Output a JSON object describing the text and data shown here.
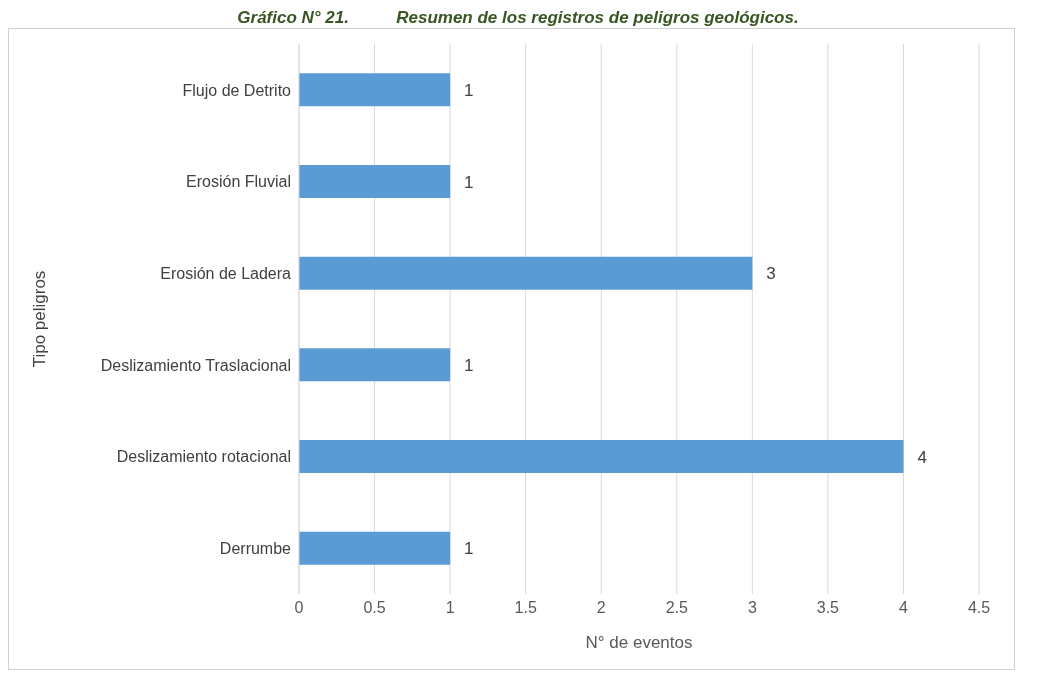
{
  "chart_data": {
    "type": "bar",
    "orientation": "horizontal",
    "title": "Gráfico N° 21.          Resumen de los registros de peligros geológicos.",
    "categories": [
      "Flujo de Detrito",
      "Erosión Fluvial",
      "Erosión de Ladera",
      "Deslizamiento Traslacional",
      "Deslizamiento rotacional",
      "Derrumbe"
    ],
    "values": [
      1,
      1,
      3,
      1,
      4,
      1
    ],
    "color": "#5b9bd5",
    "xlim": [
      0,
      4.5
    ],
    "xticks": [
      0,
      0.5,
      1,
      1.5,
      2,
      2.5,
      3,
      3.5,
      4,
      4.5
    ],
    "xlabel": "N° de eventos",
    "ylabel": "Tipo peligros",
    "grid": "x",
    "data_labels": true
  }
}
